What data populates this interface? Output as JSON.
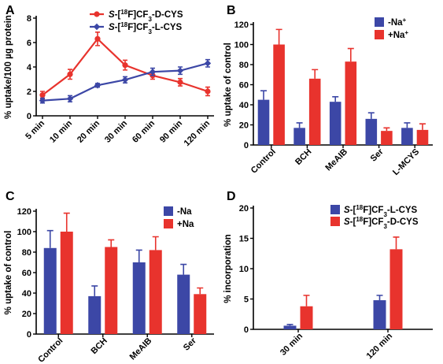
{
  "colors": {
    "red": "#e8332d",
    "blue": "#3c47a6",
    "bar_blue": "#3c47a6",
    "bar_red": "#e8332d"
  },
  "chart_data": [
    {
      "panel": "A",
      "type": "line",
      "categories": [
        "5 min",
        "10 min",
        "20 min",
        "30 min",
        "60 min",
        "90 min",
        "120 min"
      ],
      "ylabel": "% uptake/100 µg protein",
      "ylim": [
        0,
        8
      ],
      "yticks": [
        0,
        2,
        4,
        6,
        8
      ],
      "legend_position": "top-right",
      "series": [
        {
          "name": "S-[18F]CF3-D-CYS",
          "name_parts": {
            "italic": "S",
            "pre": "-[",
            "sup": "18",
            "mid": "F]CF",
            "sub": "3",
            "post": "-D-CYS"
          },
          "color_key": "red",
          "marker": "circle",
          "values": [
            1.7,
            3.4,
            6.3,
            4.15,
            3.3,
            2.75,
            2.0
          ],
          "errors": [
            0.3,
            0.4,
            0.55,
            0.4,
            0.3,
            0.3,
            0.35
          ]
        },
        {
          "name": "S-[18F]CF3-L-CYS",
          "name_parts": {
            "italic": "S",
            "pre": "-[",
            "sup": "18",
            "mid": "F]CF",
            "sub": "3",
            "post": "-L-CYS"
          },
          "color_key": "blue",
          "marker": "diamond",
          "values": [
            1.25,
            1.4,
            2.5,
            2.95,
            3.6,
            3.7,
            4.3
          ],
          "errors": [
            0.2,
            0.25,
            0.15,
            0.25,
            0.3,
            0.3,
            0.3
          ]
        }
      ]
    },
    {
      "panel": "B",
      "type": "bar",
      "categories": [
        "Control",
        "BCH",
        "MeAIB",
        "Ser",
        "L-MCYS"
      ],
      "ylabel": "% uptake of control",
      "ylim": [
        0,
        120
      ],
      "yticks": [
        0,
        20,
        40,
        60,
        80,
        100,
        120
      ],
      "legend_position": "top-right",
      "series": [
        {
          "name": "-Na+",
          "name_parts": {
            "pre": "-Na",
            "sup": "+"
          },
          "color_key": "bar_blue",
          "values": [
            45,
            17,
            43,
            26,
            17
          ],
          "errors": [
            9,
            5,
            5,
            6,
            5
          ]
        },
        {
          "name": "+Na+",
          "name_parts": {
            "pre": "+Na",
            "sup": "+"
          },
          "color_key": "bar_red",
          "values": [
            100,
            66,
            83,
            14,
            15
          ],
          "errors": [
            15,
            9,
            13,
            3,
            6
          ]
        }
      ]
    },
    {
      "panel": "C",
      "type": "bar",
      "categories": [
        "Control",
        "BCH",
        "MeAIB",
        "Ser"
      ],
      "ylabel": "% uptake of control",
      "ylim": [
        0,
        120
      ],
      "yticks": [
        0,
        20,
        40,
        60,
        80,
        100,
        120
      ],
      "legend_position": "top-right",
      "series": [
        {
          "name": "-Na",
          "name_parts": {
            "pre": "-Na"
          },
          "color_key": "bar_blue",
          "values": [
            84,
            37,
            70,
            58
          ],
          "errors": [
            17,
            10,
            12,
            10
          ]
        },
        {
          "name": "+Na",
          "name_parts": {
            "pre": "+Na"
          },
          "color_key": "bar_red",
          "values": [
            100,
            85,
            82,
            39
          ],
          "errors": [
            18,
            7,
            13,
            6
          ]
        }
      ]
    },
    {
      "panel": "D",
      "type": "bar",
      "categories": [
        "30 min",
        "120 min"
      ],
      "ylabel": "% incorporation",
      "ylim": [
        0,
        20
      ],
      "yticks": [
        0,
        5,
        10,
        15,
        20
      ],
      "legend_position": "top-right",
      "series": [
        {
          "name": "S-[18F]CF3-L-CYS",
          "name_parts": {
            "italic": "S",
            "pre": "-[",
            "sup": "18",
            "mid": "F]CF",
            "sub": "3",
            "post": "-L-CYS"
          },
          "color_key": "bar_blue",
          "values": [
            0.6,
            4.8
          ],
          "errors": [
            0.2,
            0.8
          ]
        },
        {
          "name": "S-[18F]CF3-D-CYS",
          "name_parts": {
            "italic": "S",
            "pre": "-[",
            "sup": "18",
            "mid": "F]CF",
            "sub": "3",
            "post": "-D-CYS"
          },
          "color_key": "bar_red",
          "values": [
            3.8,
            13.2
          ],
          "errors": [
            1.8,
            2.0
          ]
        }
      ]
    }
  ]
}
